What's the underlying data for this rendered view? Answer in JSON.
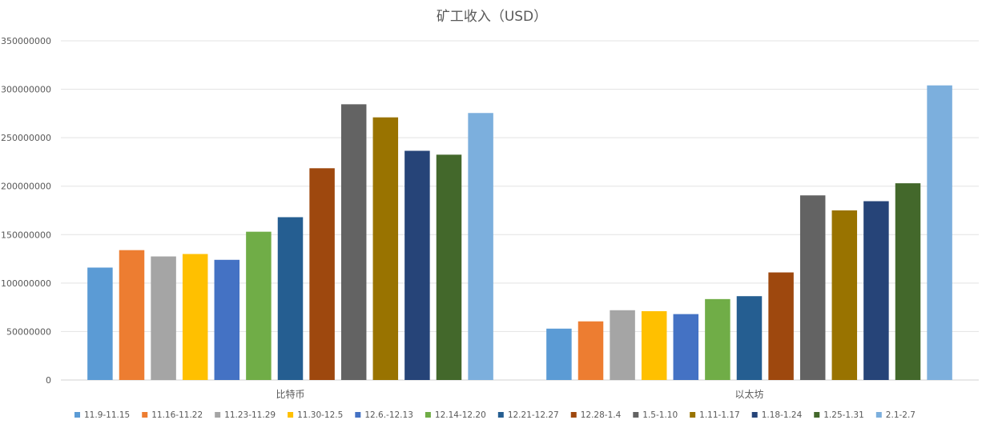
{
  "chart_data": {
    "type": "bar",
    "title": "矿工收入（USD）",
    "xlabel": "",
    "ylabel": "",
    "ylim": [
      0,
      350000000
    ],
    "yticks": [
      0,
      50000000,
      100000000,
      150000000,
      200000000,
      250000000,
      300000000,
      350000000
    ],
    "ytick_labels": [
      "0",
      "50000000",
      "100000000",
      "150000000",
      "200000000",
      "250000000",
      "300000000",
      "350000000"
    ],
    "grid": true,
    "legend_position": "bottom",
    "categories": [
      "比特币",
      "以太坊"
    ],
    "series": [
      {
        "name": "11.9-11.15",
        "color": "#5B9BD5",
        "values": [
          116000000,
          53000000
        ]
      },
      {
        "name": "11.16-11.22",
        "color": "#ED7D31",
        "values": [
          134000000,
          60500000
        ]
      },
      {
        "name": "11.23-11.29",
        "color": "#A5A5A5",
        "values": [
          127500000,
          72000000
        ]
      },
      {
        "name": "11.30-12.5",
        "color": "#FFC000",
        "values": [
          130000000,
          71000000
        ]
      },
      {
        "name": "12.6.-12.13",
        "color": "#4472C4",
        "values": [
          124000000,
          68000000
        ]
      },
      {
        "name": "12.14-12.20",
        "color": "#70AD47",
        "values": [
          153000000,
          83500000
        ]
      },
      {
        "name": "12.21-12.27",
        "color": "#255E91",
        "values": [
          168000000,
          86500000
        ]
      },
      {
        "name": "12.28-1.4",
        "color": "#9E480E",
        "values": [
          218500000,
          111000000
        ]
      },
      {
        "name": "1.5-1.10",
        "color": "#636363",
        "values": [
          284500000,
          190500000
        ]
      },
      {
        "name": "1.11-1.17",
        "color": "#997300",
        "values": [
          271000000,
          175000000
        ]
      },
      {
        "name": "1.18-1.24",
        "color": "#264478",
        "values": [
          236500000,
          184500000
        ]
      },
      {
        "name": "1.25-1.31",
        "color": "#43682B",
        "values": [
          232500000,
          203000000
        ]
      },
      {
        "name": "2.1-2.7",
        "color": "#7CAFDD",
        "values": [
          275500000,
          304000000
        ]
      }
    ]
  }
}
